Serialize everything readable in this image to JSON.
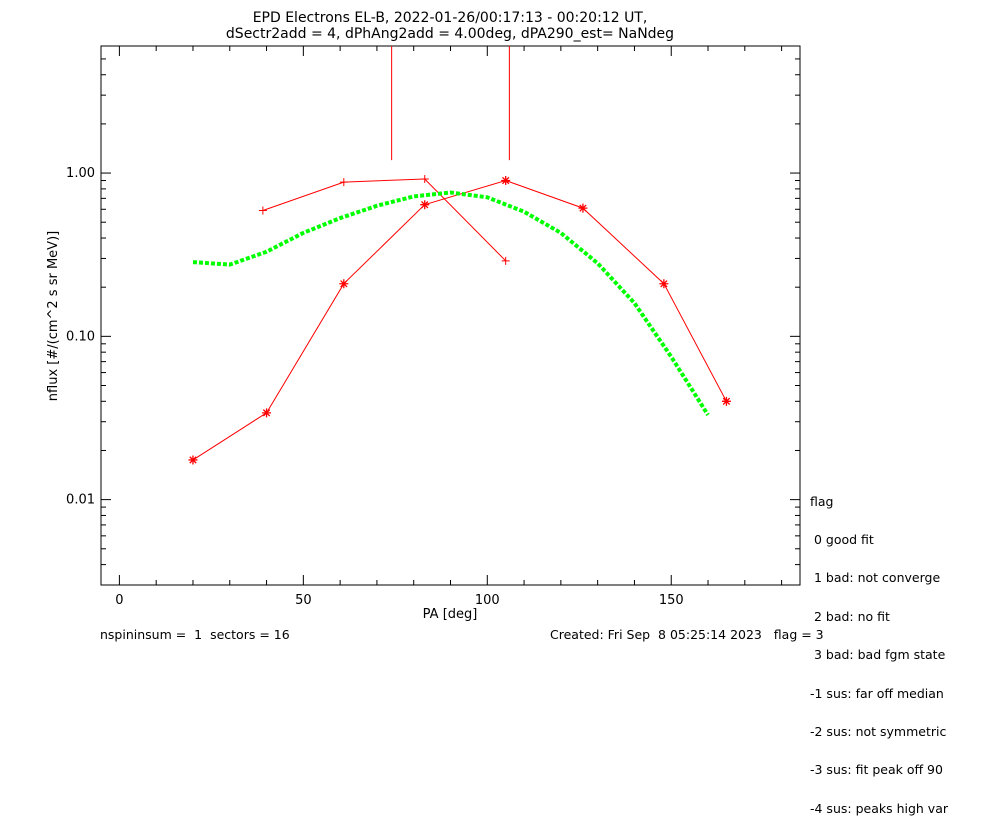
{
  "title_line1": "EPD Electrons EL-B, 2022-01-26/00:17:13 - 00:20:12 UT,",
  "title_line2": "dSectr2add = 4, dPhAng2add = 4.00deg, dPA290_est=   NaNdeg",
  "legend": {
    "title": "flag",
    "items": [
      " 0 good fit",
      " 1 bad: not converge",
      " 2 bad: no fit",
      " 3 bad: bad fgm state",
      "-1 sus: far off median",
      "-2 sus: not symmetric",
      "-3 sus: fit peak off 90",
      "-4 sus: peaks high var"
    ]
  },
  "footer": {
    "left": "nspininsum =  1  sectors = 16",
    "right": "Created: Fri Sep  8 05:25:14 2023   flag = 3"
  },
  "colors": {
    "data": "#ff0000",
    "fit": "#00ff00",
    "axes": "#000000"
  },
  "chart_data": {
    "type": "line",
    "title": "EPD Electrons EL-B, 2022-01-26/00:17:13 - 00:20:12 UT,",
    "subtitle": "dSectr2add = 4, dPhAng2add = 4.00deg, dPA290_est=   NaNdeg",
    "xlabel": "PA [deg]",
    "ylabel": "nflux [#/(cm^2 s sr MeV)]",
    "xlim": [
      -5,
      185
    ],
    "ylim": [
      0.003,
      6
    ],
    "yscale": "log",
    "xticks": [
      0,
      50,
      100,
      150
    ],
    "xtick_labels": [
      "0",
      "50",
      "100",
      "150"
    ],
    "yticks": [
      0.01,
      0.1,
      1.0
    ],
    "ytick_labels": [
      "0.01",
      "0.10",
      "1.00"
    ],
    "grid": false,
    "series": [
      {
        "marker": "plus",
        "color": "#ff0000",
        "x": [
          39,
          61,
          83,
          105
        ],
        "y": [
          0.59,
          0.88,
          0.92,
          0.29
        ]
      },
      {
        "marker": "asterisk",
        "color": "#ff0000",
        "x": [
          20,
          40,
          61,
          83,
          105,
          126,
          148,
          165
        ],
        "y": [
          0.0175,
          0.034,
          0.21,
          0.64,
          0.9,
          0.61,
          0.21,
          0.04
        ]
      },
      {
        "marker": "none",
        "style": "dashed",
        "color": "#00ff00",
        "x": [
          20,
          30,
          40,
          50,
          60,
          70,
          80,
          90,
          100,
          110,
          120,
          130,
          140,
          150,
          160
        ],
        "y": [
          0.285,
          0.275,
          0.33,
          0.43,
          0.53,
          0.63,
          0.72,
          0.76,
          0.71,
          0.58,
          0.43,
          0.28,
          0.16,
          0.075,
          0.033
        ]
      }
    ],
    "vertical_markers": [
      {
        "x": 74,
        "y_from": 1.2,
        "y_to": 6
      },
      {
        "x": 106,
        "y_from": 1.2,
        "y_to": 6
      }
    ]
  }
}
